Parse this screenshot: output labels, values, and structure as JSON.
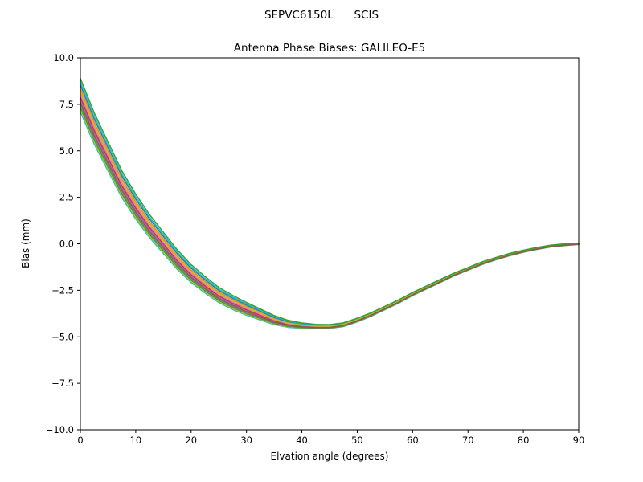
{
  "chart_data": {
    "type": "line",
    "title": "SEPVC6150L      SCIS",
    "subtitle": "Antenna Phase Biases: GALILEO-E5",
    "xlabel": "Elvation angle (degrees)",
    "ylabel": "Bias (mm)",
    "xlim": [
      0,
      90
    ],
    "ylim": [
      -10.0,
      10.0
    ],
    "grid": false,
    "legend": "none",
    "xticks": [
      {
        "v": 0,
        "label": "0"
      },
      {
        "v": 10,
        "label": "10"
      },
      {
        "v": 20,
        "label": "20"
      },
      {
        "v": 30,
        "label": "30"
      },
      {
        "v": 40,
        "label": "40"
      },
      {
        "v": 50,
        "label": "50"
      },
      {
        "v": 60,
        "label": "60"
      },
      {
        "v": 70,
        "label": "70"
      },
      {
        "v": 80,
        "label": "80"
      },
      {
        "v": 90,
        "label": "90"
      }
    ],
    "yticks": [
      {
        "v": -10.0,
        "label": "−10.0"
      },
      {
        "v": -7.5,
        "label": "−7.5"
      },
      {
        "v": -5.0,
        "label": "−5.0"
      },
      {
        "v": -2.5,
        "label": "−2.5"
      },
      {
        "v": 0.0,
        "label": "0.0"
      },
      {
        "v": 2.5,
        "label": "2.5"
      },
      {
        "v": 5.0,
        "label": "5.0"
      },
      {
        "v": 7.5,
        "label": "7.5"
      },
      {
        "v": 10.0,
        "label": "10.0"
      }
    ],
    "x": [
      0,
      2.5,
      5,
      7.5,
      10,
      12.5,
      15,
      17.5,
      20,
      22.5,
      25,
      27.5,
      30,
      32.5,
      35,
      37.5,
      40,
      42.5,
      45,
      47.5,
      50,
      52.5,
      55,
      57.5,
      60,
      62.5,
      65,
      67.5,
      70,
      72.5,
      75,
      77.5,
      80,
      82.5,
      85,
      87.5,
      90
    ],
    "mean": [
      8.0,
      6.2,
      4.7,
      3.2,
      2.0,
      0.95,
      0.05,
      -0.85,
      -1.6,
      -2.2,
      -2.75,
      -3.15,
      -3.5,
      -3.8,
      -4.1,
      -4.3,
      -4.4,
      -4.45,
      -4.45,
      -4.35,
      -4.1,
      -3.8,
      -3.45,
      -3.1,
      -2.7,
      -2.35,
      -2.0,
      -1.65,
      -1.35,
      -1.05,
      -0.8,
      -0.58,
      -0.4,
      -0.25,
      -0.12,
      -0.05,
      0.0
    ],
    "spread": [
      1.0,
      0.93,
      0.86,
      0.8,
      0.74,
      0.68,
      0.63,
      0.58,
      0.53,
      0.49,
      0.45,
      0.42,
      0.38,
      0.33,
      0.27,
      0.21,
      0.16,
      0.13,
      0.12,
      0.11,
      0.11,
      0.1,
      0.1,
      0.1,
      0.09,
      0.09,
      0.09,
      0.08,
      0.08,
      0.08,
      0.07,
      0.07,
      0.06,
      0.06,
      0.05,
      0.05,
      0.04
    ],
    "series": [
      {
        "color": "#17becf",
        "offset": -0.9
      },
      {
        "color": "#bcbd22",
        "offset": -0.78
      },
      {
        "color": "#2ca02c",
        "offset": -0.65
      },
      {
        "color": "#7f7f7f",
        "offset": -0.52
      },
      {
        "color": "#9467bd",
        "offset": -0.25
      },
      {
        "color": "#d62728",
        "offset": -0.1
      },
      {
        "color": "#e377c2",
        "offset": 0.05
      },
      {
        "color": "#ff7f0e",
        "offset": 0.35
      },
      {
        "color": "#1f77b4",
        "offset": 0.55
      },
      {
        "color": "#17becf",
        "offset": 0.7
      },
      {
        "color": "#bcbd22",
        "offset": 0.2
      },
      {
        "color": "#8c564b",
        "offset": -0.4
      },
      {
        "color": "#2ca02c",
        "offset": 0.9
      }
    ],
    "line_width": 1.6,
    "axis_color": "#000000",
    "background_color": "#ffffff"
  }
}
